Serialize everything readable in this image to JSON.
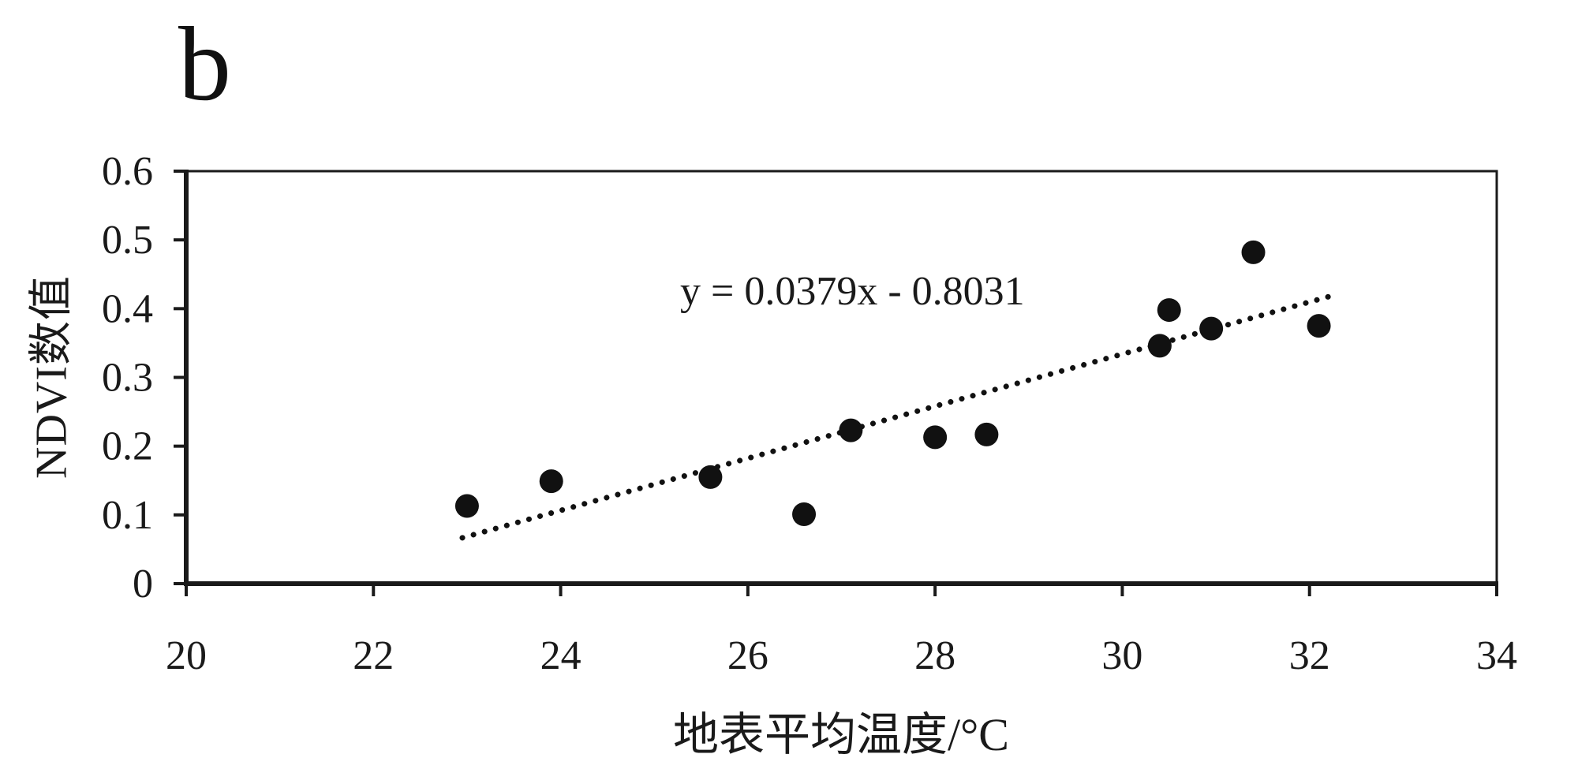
{
  "panel_label": "b",
  "chart_data": {
    "type": "scatter",
    "title": "",
    "xlabel": "地表平均温度/°C",
    "ylabel": "NDVI数值",
    "xlim": [
      20,
      34
    ],
    "ylim": [
      0,
      0.6
    ],
    "xticks": [
      20,
      22,
      24,
      26,
      28,
      30,
      32,
      34
    ],
    "yticks": [
      0,
      0.1,
      0.2,
      0.3,
      0.4,
      0.5,
      0.6
    ],
    "grid": false,
    "legend": "none",
    "equation": "y = 0.0379x - 0.8031",
    "trendline": {
      "slope": 0.0379,
      "intercept": -0.8031,
      "x_start": 22.95,
      "x_end": 32.3,
      "style": "dotted"
    },
    "points": [
      [
        23.0,
        0.113
      ],
      [
        23.9,
        0.149
      ],
      [
        25.6,
        0.155
      ],
      [
        26.6,
        0.101
      ],
      [
        27.1,
        0.223
      ],
      [
        28.0,
        0.213
      ],
      [
        28.55,
        0.217
      ],
      [
        30.4,
        0.346
      ],
      [
        30.5,
        0.398
      ],
      [
        30.95,
        0.371
      ],
      [
        31.4,
        0.482
      ],
      [
        32.1,
        0.375
      ]
    ],
    "point_color": "#111111",
    "axis_color": "#1a1a1a",
    "trendline_color": "#111111"
  }
}
